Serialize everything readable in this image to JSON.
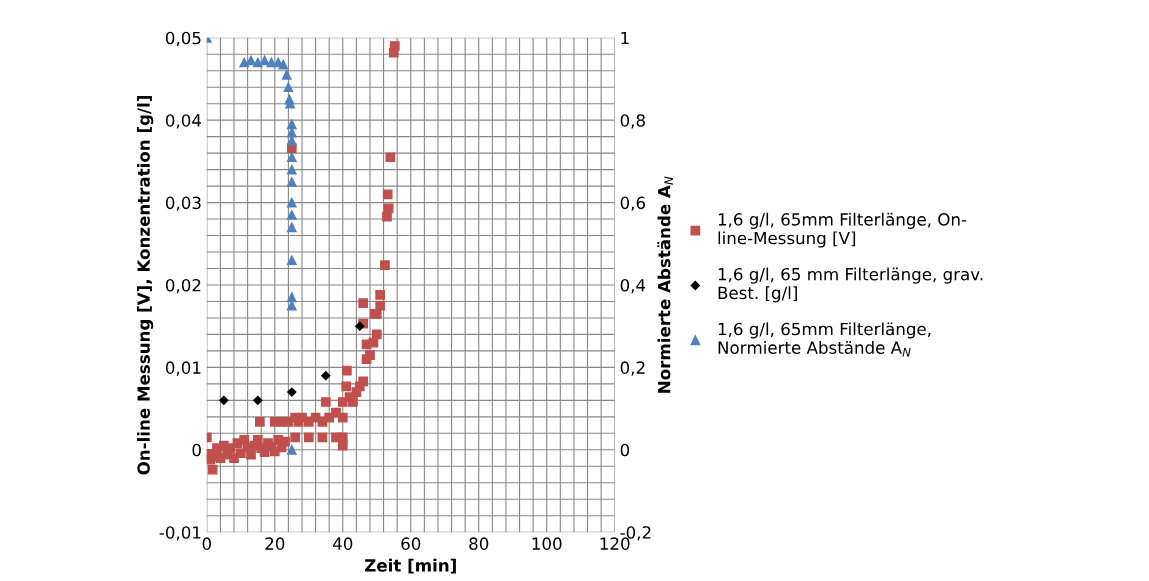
{
  "chart_data": {
    "type": "scatter",
    "xlabel": "Zeit [min]",
    "ylabel": "On-line Messung [V], Konzentration [g/l]",
    "y2label": "Normierte Abstände A$_{N}$",
    "xlim": [
      0,
      120
    ],
    "xticks": [
      0,
      {
        "value": 4,
        "label": null
      },
      {
        "value": 8,
        "label": null
      },
      {
        "value": 12,
        "label": null
      },
      {
        "value": 16,
        "label": null
      },
      20,
      {
        "value": 24,
        "label": null
      },
      {
        "value": 28,
        "label": null
      },
      {
        "value": 32,
        "label": null
      },
      {
        "value": 36,
        "label": null
      },
      40,
      {
        "value": 44,
        "label": null
      },
      {
        "value": 48,
        "label": null
      },
      {
        "value": 52,
        "label": null
      },
      {
        "value": 56,
        "label": null
      },
      60,
      {
        "value": 64,
        "label": null
      },
      {
        "value": 68,
        "label": null
      },
      {
        "value": 72,
        "label": null
      },
      {
        "value": 76,
        "label": null
      },
      80,
      {
        "value": 84,
        "label": null
      },
      {
        "value": 88,
        "label": null
      },
      {
        "value": 92,
        "label": null
      },
      {
        "value": 96,
        "label": null
      },
      100,
      {
        "value": 104,
        "label": null
      },
      {
        "value": 108,
        "label": null
      },
      {
        "value": 112,
        "label": null
      },
      {
        "value": 116,
        "label": null
      },
      120
    ],
    "ylim": [
      -0.01,
      0.05
    ],
    "yticks": [
      {
        "value": -0.01,
        "label": "-0,01"
      },
      {
        "value": -0.008,
        "label": null
      },
      {
        "value": -0.006,
        "label": null
      },
      {
        "value": -0.004,
        "label": null
      },
      {
        "value": -0.002,
        "label": null
      },
      0,
      {
        "value": 0.002,
        "label": null
      },
      {
        "value": 0.004,
        "label": null
      },
      {
        "value": 0.006,
        "label": null
      },
      {
        "value": 0.008,
        "label": null
      },
      {
        "value": 0.01,
        "label": "0,01"
      },
      {
        "value": 0.012,
        "label": null
      },
      {
        "value": 0.014,
        "label": null
      },
      {
        "value": 0.016,
        "label": null
      },
      {
        "value": 0.018,
        "label": null
      },
      {
        "value": 0.02,
        "label": "0,02"
      },
      {
        "value": 0.022,
        "label": null
      },
      {
        "value": 0.024,
        "label": null
      },
      {
        "value": 0.026,
        "label": null
      },
      {
        "value": 0.028,
        "label": null
      },
      {
        "value": 0.03,
        "label": "0,03"
      },
      {
        "value": 0.032,
        "label": null
      },
      {
        "value": 0.034,
        "label": null
      },
      {
        "value": 0.036,
        "label": null
      },
      {
        "value": 0.038,
        "label": null
      },
      {
        "value": 0.04,
        "label": "0,04"
      },
      {
        "value": 0.042,
        "label": null
      },
      {
        "value": 0.044,
        "label": null
      },
      {
        "value": 0.046,
        "label": null
      },
      {
        "value": 0.048,
        "label": null
      },
      {
        "value": 0.05,
        "label": "0,05"
      }
    ],
    "y2lim": [
      -0.2,
      1
    ],
    "y2ticks": [
      {
        "value": -0.2,
        "label": "-0,2"
      },
      0,
      {
        "value": 0.2,
        "label": "0,2"
      },
      {
        "value": 0.4,
        "label": "0,4"
      },
      {
        "value": 0.6,
        "label": "0,6"
      },
      {
        "value": 0.8,
        "label": "0,8"
      },
      1
    ],
    "grid": true,
    "legend": "right",
    "series": [
      {
        "name": "1,6 g/l, 65mm Filterlänge, On-\nline-Messung [V]",
        "color": "#c0504d",
        "marker": "square",
        "x": [
          0,
          0.5,
          1,
          1.7,
          2.5,
          3,
          4,
          5,
          6,
          7,
          8,
          9,
          10,
          11,
          12,
          13,
          14,
          15,
          16,
          17,
          18,
          19,
          20,
          21,
          22,
          23,
          15.6,
          20,
          22,
          24,
          25,
          26,
          27,
          28,
          30,
          32,
          34,
          35,
          36,
          38,
          40,
          26,
          30,
          34,
          38,
          40,
          40,
          40,
          41,
          41.2,
          42,
          43,
          44,
          45,
          46,
          47,
          47,
          48,
          49,
          49.4,
          50,
          50,
          51,
          51,
          46,
          46,
          52.4,
          53,
          53.2,
          53.5,
          54,
          55,
          55.3
        ],
        "values": [
          0.0015,
          -0.0005,
          -0.0012,
          -0.0024,
          -0.0008,
          0.0002,
          -0.001,
          0.0005,
          -0.0006,
          0.0002,
          -0.001,
          0.0008,
          -0.0004,
          0.0012,
          0.0003,
          -0.0006,
          0.0005,
          0.0012,
          0.0002,
          -0.0003,
          0.0008,
          0.0004,
          -0.0002,
          0.0012,
          0.0003,
          0.001,
          0.0034,
          0.0034,
          0.0034,
          0.0034,
          0.0366,
          0.0039,
          0.0034,
          0.0039,
          0.0034,
          0.0039,
          0.0034,
          0.0058,
          0.0039,
          0.0045,
          0.0039,
          0.0015,
          0.0015,
          0.0015,
          0.0015,
          0.0005,
          0.0015,
          0.0058,
          0.0077,
          0.0096,
          0.0064,
          0.0058,
          0.007,
          0.0077,
          0.0083,
          0.011,
          0.0128,
          0.0115,
          0.013,
          0.0165,
          0.014,
          0.0165,
          0.0175,
          0.0188,
          0.0178,
          0.0153,
          0.0224,
          0.0283,
          0.031,
          0.0293,
          0.0355,
          0.0482,
          0.049
        ]
      },
      {
        "name": "1,6 g/l, 65 mm Filterlänge, grav.\nBest. [g/l]",
        "color": "#000000",
        "marker": "diamond",
        "x": [
          5,
          15,
          25,
          35,
          45
        ],
        "values": [
          0.006,
          0.006,
          0.007,
          0.009,
          0.015
        ]
      },
      {
        "name": "1,6 g/l, 65mm Filterlänge,\nNormierte Abstände A$_{N}$",
        "color": "#4f81bd",
        "marker": "triangle",
        "axis": "y2",
        "x": [
          0,
          11,
          13,
          15,
          17,
          19,
          21,
          22.5,
          23.5,
          24,
          24.3,
          24.5,
          25,
          25,
          25,
          25,
          25,
          25,
          25,
          25,
          25,
          25,
          25,
          25,
          25
        ],
        "values": [
          1,
          0.94,
          0.945,
          0.94,
          0.945,
          0.94,
          0.94,
          0.935,
          0.91,
          0.88,
          0.85,
          0.84,
          0.79,
          0.77,
          0.75,
          0.71,
          0.68,
          0.65,
          0.6,
          0.57,
          0.54,
          0.46,
          0.37,
          0.35,
          0
        ]
      }
    ]
  }
}
